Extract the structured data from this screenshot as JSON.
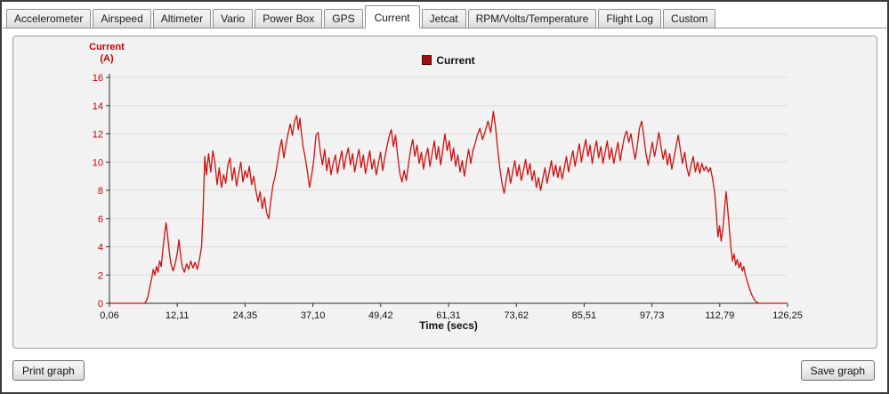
{
  "tabs": {
    "items": [
      {
        "label": "Accelerometer",
        "active": false
      },
      {
        "label": "Airspeed",
        "active": false
      },
      {
        "label": "Altimeter",
        "active": false
      },
      {
        "label": "Vario",
        "active": false
      },
      {
        "label": "Power Box",
        "active": false
      },
      {
        "label": "GPS",
        "active": false
      },
      {
        "label": "Current",
        "active": true
      },
      {
        "label": "Jetcat",
        "active": false
      },
      {
        "label": "RPM/Volts/Temperature",
        "active": false
      },
      {
        "label": "Flight Log",
        "active": false
      },
      {
        "label": "Custom",
        "active": false
      }
    ]
  },
  "buttons": {
    "print": "Print graph",
    "save": "Save graph"
  },
  "colors": {
    "series_red": "#d10f0f",
    "y_tick_red": "#cc0000",
    "x_tick_black": "#111111",
    "axis": "#2a2a2a",
    "grid": "#dcdcdc",
    "legend_swatch": "#a01212"
  },
  "chart_data": {
    "type": "line",
    "title": "",
    "xlabel": "Time (secs)",
    "ylabel": "Current (A)",
    "ylabel_lines": [
      "Current",
      "(A)"
    ],
    "legend": [
      "Current"
    ],
    "legend_position": "top-center",
    "grid": "horizontal",
    "xlim": [
      0.06,
      126.25
    ],
    "ylim": [
      0,
      16
    ],
    "y_ticks": [
      0,
      2,
      4,
      6,
      8,
      10,
      12,
      14,
      16
    ],
    "x_tick_labels": [
      "0,06",
      "12,11",
      "24,35",
      "37,10",
      "49,42",
      "61,31",
      "73,62",
      "85,51",
      "97,73",
      "112,79",
      "126,25"
    ],
    "series": [
      {
        "name": "Current",
        "color": "#d10f0f",
        "points": [
          [
            0.06,
            0
          ],
          [
            2,
            0
          ],
          [
            4,
            0
          ],
          [
            5.5,
            0
          ],
          [
            6.6,
            0
          ],
          [
            7,
            0.2
          ],
          [
            7.3,
            0.6
          ],
          [
            7.6,
            1.2
          ],
          [
            7.9,
            1.7
          ],
          [
            8.2,
            2.4
          ],
          [
            8.5,
            2
          ],
          [
            8.8,
            2.6
          ],
          [
            9.1,
            2.2
          ],
          [
            9.4,
            3
          ],
          [
            9.7,
            2.6
          ],
          [
            10,
            3.8
          ],
          [
            10.3,
            4.8
          ],
          [
            10.6,
            5.7
          ],
          [
            10.9,
            4.7
          ],
          [
            11.2,
            3.6
          ],
          [
            11.5,
            2.8
          ],
          [
            11.9,
            2.3
          ],
          [
            12.3,
            2.8
          ],
          [
            12.7,
            3.6
          ],
          [
            13,
            4.5
          ],
          [
            13.3,
            3.4
          ],
          [
            13.6,
            2.6
          ],
          [
            14,
            2.2
          ],
          [
            14.4,
            2.8
          ],
          [
            14.8,
            2.4
          ],
          [
            15.2,
            3
          ],
          [
            15.6,
            2.5
          ],
          [
            16,
            2.9
          ],
          [
            16.4,
            2.4
          ],
          [
            16.8,
            3.1
          ],
          [
            17.2,
            4
          ],
          [
            17.5,
            6.6
          ],
          [
            17.8,
            10.4
          ],
          [
            18.1,
            9.1
          ],
          [
            18.5,
            10.6
          ],
          [
            18.9,
            9.3
          ],
          [
            19.3,
            10.8
          ],
          [
            19.7,
            9.9
          ],
          [
            20.1,
            8.4
          ],
          [
            20.5,
            9.6
          ],
          [
            20.9,
            8.2
          ],
          [
            21.3,
            9.1
          ],
          [
            21.7,
            8.5
          ],
          [
            22.1,
            9.8
          ],
          [
            22.5,
            10.3
          ],
          [
            22.9,
            8.7
          ],
          [
            23.3,
            9.6
          ],
          [
            23.7,
            8.3
          ],
          [
            24.1,
            9.2
          ],
          [
            24.5,
            10
          ],
          [
            24.9,
            8.6
          ],
          [
            25.3,
            9.4
          ],
          [
            25.7,
            8.9
          ],
          [
            26.1,
            9.7
          ],
          [
            26.5,
            8.4
          ],
          [
            26.9,
            9
          ],
          [
            27.3,
            8
          ],
          [
            27.7,
            7.2
          ],
          [
            28.1,
            7.9
          ],
          [
            28.5,
            6.7
          ],
          [
            28.9,
            7.5
          ],
          [
            29.3,
            6.4
          ],
          [
            29.7,
            6
          ],
          [
            30.1,
            7.3
          ],
          [
            30.5,
            8.4
          ],
          [
            30.9,
            9
          ],
          [
            31.3,
            9.9
          ],
          [
            31.7,
            10.9
          ],
          [
            32.1,
            11.6
          ],
          [
            32.5,
            10.3
          ],
          [
            32.9,
            11.2
          ],
          [
            33.3,
            12
          ],
          [
            33.7,
            12.7
          ],
          [
            34.1,
            11.9
          ],
          [
            34.5,
            12.9
          ],
          [
            34.9,
            13.3
          ],
          [
            35.2,
            12.3
          ],
          [
            35.5,
            13.1
          ],
          [
            35.8,
            12
          ],
          [
            36.1,
            11.1
          ],
          [
            36.5,
            10.3
          ],
          [
            36.9,
            9.3
          ],
          [
            37.3,
            8.2
          ],
          [
            37.7,
            9.1
          ],
          [
            38.1,
            10.2
          ],
          [
            38.5,
            11.9
          ],
          [
            38.9,
            12.1
          ],
          [
            39.3,
            10.7
          ],
          [
            39.7,
            9.8
          ],
          [
            40.1,
            10.9
          ],
          [
            40.5,
            9.4
          ],
          [
            40.9,
            10.3
          ],
          [
            41.3,
            9.1
          ],
          [
            41.7,
            9.9
          ],
          [
            42.1,
            10.5
          ],
          [
            42.5,
            9.2
          ],
          [
            42.9,
            10.1
          ],
          [
            43.3,
            10.8
          ],
          [
            43.7,
            9.5
          ],
          [
            44.1,
            10.4
          ],
          [
            44.5,
            11
          ],
          [
            44.9,
            9.8
          ],
          [
            45.3,
            10.6
          ],
          [
            45.7,
            9.3
          ],
          [
            46.1,
            10.2
          ],
          [
            46.5,
            10.9
          ],
          [
            46.9,
            9.6
          ],
          [
            47.3,
            10.5
          ],
          [
            47.7,
            9.2
          ],
          [
            48.1,
            10
          ],
          [
            48.5,
            10.8
          ],
          [
            48.9,
            9.5
          ],
          [
            49.3,
            10.2
          ],
          [
            49.7,
            9.1
          ],
          [
            50.1,
            9.9
          ],
          [
            50.5,
            10.7
          ],
          [
            50.9,
            9.4
          ],
          [
            51.3,
            10.3
          ],
          [
            51.7,
            11.1
          ],
          [
            52.1,
            11.8
          ],
          [
            52.5,
            12.3
          ],
          [
            52.9,
            11.1
          ],
          [
            53.3,
            11.9
          ],
          [
            53.7,
            10.4
          ],
          [
            54.1,
            9.2
          ],
          [
            54.5,
            8.6
          ],
          [
            54.9,
            9.4
          ],
          [
            55.3,
            8.7
          ],
          [
            55.7,
            9.8
          ],
          [
            56.1,
            10.9
          ],
          [
            56.5,
            11.6
          ],
          [
            56.9,
            10.4
          ],
          [
            57.3,
            11.2
          ],
          [
            57.7,
            9.9
          ],
          [
            58.1,
            10.7
          ],
          [
            58.5,
            9.5
          ],
          [
            58.9,
            10.4
          ],
          [
            59.3,
            11
          ],
          [
            59.7,
            9.7
          ],
          [
            60.1,
            10.6
          ],
          [
            60.5,
            11.5
          ],
          [
            60.9,
            10.2
          ],
          [
            61.3,
            11.1
          ],
          [
            61.7,
            9.8
          ],
          [
            62.1,
            10.9
          ],
          [
            62.5,
            12
          ],
          [
            62.9,
            10.8
          ],
          [
            63.3,
            11.5
          ],
          [
            63.7,
            10.1
          ],
          [
            64.1,
            11
          ],
          [
            64.5,
            9.7
          ],
          [
            64.9,
            10.5
          ],
          [
            65.3,
            9.3
          ],
          [
            65.7,
            10.1
          ],
          [
            66.1,
            9
          ],
          [
            66.5,
            10
          ],
          [
            66.9,
            10.9
          ],
          [
            67.3,
            9.9
          ],
          [
            67.7,
            10.8
          ],
          [
            68.1,
            11.3
          ],
          [
            68.5,
            11.9
          ],
          [
            69,
            12.4
          ],
          [
            69.5,
            11.6
          ],
          [
            70,
            12.2
          ],
          [
            70.5,
            12.9
          ],
          [
            71,
            12.1
          ],
          [
            71.5,
            13.6
          ],
          [
            71.9,
            12.5
          ],
          [
            72.3,
            11
          ],
          [
            72.7,
            9.6
          ],
          [
            73.1,
            8.5
          ],
          [
            73.5,
            7.8
          ],
          [
            73.9,
            8.8
          ],
          [
            74.3,
            9.6
          ],
          [
            74.7,
            8.5
          ],
          [
            75.1,
            9.3
          ],
          [
            75.5,
            10.1
          ],
          [
            75.9,
            9
          ],
          [
            76.3,
            9.8
          ],
          [
            76.7,
            8.7
          ],
          [
            77.1,
            9.4
          ],
          [
            77.5,
            10.2
          ],
          [
            77.9,
            9.1
          ],
          [
            78.3,
            9.9
          ],
          [
            78.7,
            8.7
          ],
          [
            79.1,
            9.4
          ],
          [
            79.5,
            8.2
          ],
          [
            79.9,
            8.9
          ],
          [
            80.3,
            8
          ],
          [
            80.7,
            8.8
          ],
          [
            81.1,
            9.6
          ],
          [
            81.5,
            8.5
          ],
          [
            81.9,
            9.3
          ],
          [
            82.3,
            10.1
          ],
          [
            82.7,
            9
          ],
          [
            83.1,
            9.8
          ],
          [
            83.5,
            8.9
          ],
          [
            83.9,
            9.7
          ],
          [
            84.3,
            8.8
          ],
          [
            84.7,
            9.6
          ],
          [
            85.1,
            10.4
          ],
          [
            85.5,
            9.3
          ],
          [
            85.9,
            10.1
          ],
          [
            86.3,
            10.8
          ],
          [
            86.7,
            9.7
          ],
          [
            87.1,
            10.5
          ],
          [
            87.5,
            11.3
          ],
          [
            87.9,
            10
          ],
          [
            88.3,
            10.9
          ],
          [
            88.7,
            11.6
          ],
          [
            89.1,
            10.4
          ],
          [
            89.5,
            11.2
          ],
          [
            89.9,
            9.9
          ],
          [
            90.3,
            10.8
          ],
          [
            90.7,
            11.5
          ],
          [
            91.1,
            10.3
          ],
          [
            91.5,
            11.1
          ],
          [
            91.9,
            9.9
          ],
          [
            92.3,
            10.7
          ],
          [
            92.7,
            11.5
          ],
          [
            93.1,
            10.2
          ],
          [
            93.5,
            11
          ],
          [
            93.9,
            9.9
          ],
          [
            94.3,
            10.7
          ],
          [
            94.7,
            11.4
          ],
          [
            95.1,
            10.1
          ],
          [
            95.5,
            11
          ],
          [
            95.9,
            11.8
          ],
          [
            96.3,
            12.2
          ],
          [
            96.7,
            11.4
          ],
          [
            97.1,
            12
          ],
          [
            97.5,
            11
          ],
          [
            97.9,
            10.2
          ],
          [
            98.3,
            11.2
          ],
          [
            98.7,
            12.4
          ],
          [
            99.1,
            12.9
          ],
          [
            99.5,
            11.8
          ],
          [
            99.9,
            10.6
          ],
          [
            100.3,
            9.8
          ],
          [
            100.7,
            10.6
          ],
          [
            101.1,
            11.4
          ],
          [
            101.5,
            10.4
          ],
          [
            101.9,
            11.2
          ],
          [
            102.3,
            12.1
          ],
          [
            102.7,
            11.1
          ],
          [
            103.1,
            10.2
          ],
          [
            103.5,
            10.9
          ],
          [
            103.9,
            9.8
          ],
          [
            104.3,
            10.6
          ],
          [
            104.7,
            9.5
          ],
          [
            105.1,
            10.3
          ],
          [
            105.5,
            11.1
          ],
          [
            105.9,
            11.9
          ],
          [
            106.3,
            10.9
          ],
          [
            106.7,
            9.9
          ],
          [
            107.1,
            10.7
          ],
          [
            107.5,
            9.6
          ],
          [
            107.9,
            9
          ],
          [
            108.3,
            9.8
          ],
          [
            108.7,
            10.4
          ],
          [
            109.1,
            9.3
          ],
          [
            109.5,
            10
          ],
          [
            109.9,
            9.2
          ],
          [
            110.3,
            9.9
          ],
          [
            110.7,
            9.4
          ],
          [
            111.1,
            9.7
          ],
          [
            111.5,
            9.3
          ],
          [
            111.9,
            9.6
          ],
          [
            112.3,
            8.8
          ],
          [
            112.7,
            7.8
          ],
          [
            113,
            6.3
          ],
          [
            113.3,
            4.7
          ],
          [
            113.6,
            5.5
          ],
          [
            113.9,
            4.4
          ],
          [
            114.2,
            5.2
          ],
          [
            114.5,
            6.5
          ],
          [
            114.8,
            7.9
          ],
          [
            115.1,
            6.7
          ],
          [
            115.4,
            5.3
          ],
          [
            115.7,
            4
          ],
          [
            116,
            3
          ],
          [
            116.3,
            3.5
          ],
          [
            116.6,
            2.7
          ],
          [
            116.9,
            3.1
          ],
          [
            117.2,
            2.5
          ],
          [
            117.5,
            2.9
          ],
          [
            117.8,
            2.3
          ],
          [
            118.1,
            2.6
          ],
          [
            118.4,
            2
          ],
          [
            118.8,
            1.5
          ],
          [
            119.2,
            1
          ],
          [
            119.6,
            0.6
          ],
          [
            120,
            0.3
          ],
          [
            120.4,
            0.1
          ],
          [
            120.9,
            0
          ],
          [
            122,
            0
          ],
          [
            124,
            0
          ],
          [
            126.25,
            0
          ]
        ]
      }
    ]
  }
}
